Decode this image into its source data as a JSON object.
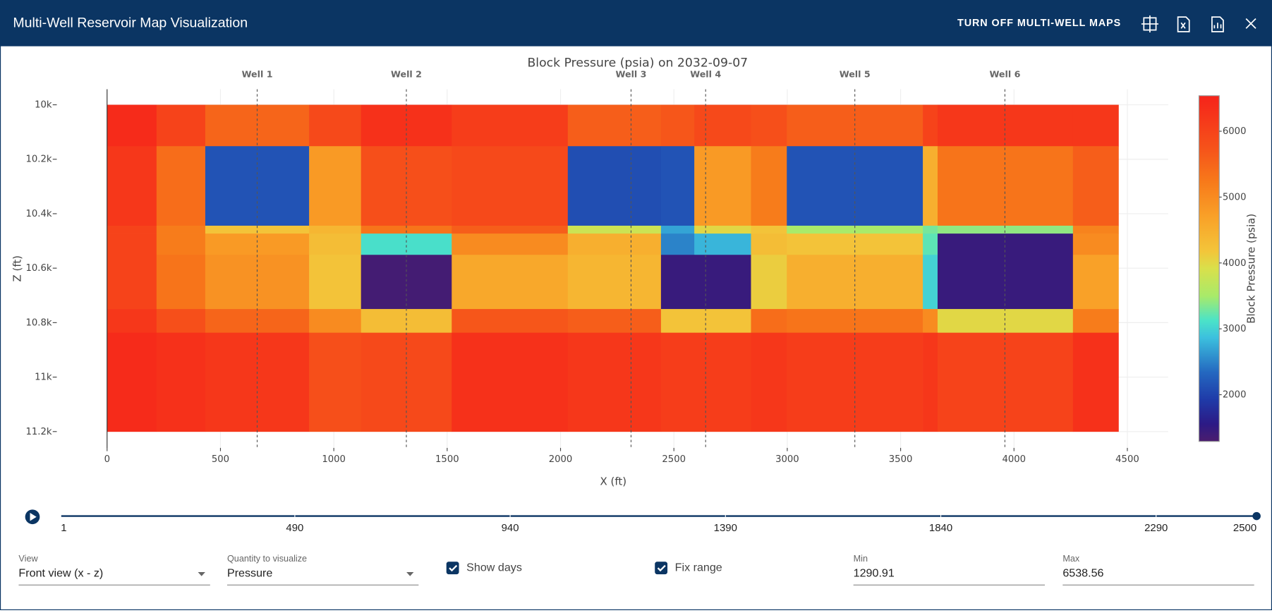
{
  "header": {
    "title": "Multi-Well Reservoir Map Visualization",
    "button": "TURN OFF MULTI-WELL MAPS"
  },
  "chart_data": {
    "type": "heatmap",
    "title": "Block Pressure (psia) on 2032-09-07",
    "x_label": "X (ft)",
    "y_label": "Z (ft)",
    "x_edges": [
      0,
      218,
      433,
      891,
      1120,
      1520,
      2032,
      2443,
      2590,
      2840,
      2998,
      3598,
      3663,
      4260,
      4461
    ],
    "y_edges": [
      10000,
      10152,
      10444,
      10473,
      10551,
      10750,
      10837,
      11200
    ],
    "z": [
      [
        6400,
        6000,
        5500,
        5900,
        6300,
        6100,
        5600,
        5700,
        5900,
        5800,
        5600,
        6000,
        6200,
        6200
      ],
      [
        6200,
        5400,
        2150,
        4800,
        5800,
        5900,
        2100,
        2150,
        4800,
        5200,
        2150,
        4500,
        5300,
        5600
      ],
      [
        6000,
        5200,
        4200,
        4400,
        5300,
        5600,
        3800,
        2700,
        4000,
        4200,
        3500,
        3300,
        3400,
        5100
      ],
      [
        6000,
        5200,
        4800,
        4300,
        3100,
        5000,
        4500,
        2500,
        2800,
        4300,
        4200,
        3200,
        1450,
        5000
      ],
      [
        6000,
        5300,
        4900,
        4200,
        1350,
        4600,
        4400,
        1450,
        1450,
        4100,
        4500,
        3000,
        1450,
        4700
      ],
      [
        6200,
        5800,
        5500,
        5000,
        4300,
        5700,
        5600,
        4200,
        4200,
        5400,
        5300,
        5000,
        4000,
        5200
      ],
      [
        6400,
        6300,
        6200,
        5800,
        5900,
        6300,
        6200,
        6100,
        6100,
        6200,
        6100,
        6200,
        6000,
        6300
      ]
    ],
    "xlim": [
      0,
      4680
    ],
    "ylim": [
      11260,
      9943
    ],
    "xticks": [
      0,
      500,
      1000,
      1500,
      2000,
      2500,
      3000,
      3500,
      4000,
      4500
    ],
    "yticks": [
      {
        "value": 10000,
        "label": "10k"
      },
      {
        "value": 10200,
        "label": "10.2k"
      },
      {
        "value": 10400,
        "label": "10.4k"
      },
      {
        "value": 10600,
        "label": "10.6k"
      },
      {
        "value": 10800,
        "label": "10.8k"
      },
      {
        "value": 11000,
        "label": "11k"
      },
      {
        "value": 11200,
        "label": "11.2k"
      }
    ],
    "grid": true,
    "wells": [
      {
        "name": "Well 1",
        "x": 662
      },
      {
        "name": "Well 2",
        "x": 1320
      },
      {
        "name": "Well 3",
        "x": 2311
      },
      {
        "name": "Well 4",
        "x": 2640
      },
      {
        "name": "Well 5",
        "x": 3298
      },
      {
        "name": "Well 6",
        "x": 3960
      }
    ],
    "zlim": [
      1290.91,
      6538.56
    ],
    "colorbar": {
      "title": "Block Pressure (psia)",
      "ticks": [
        2000,
        3000,
        4000,
        5000,
        6000
      ]
    },
    "colorscale": [
      [
        0,
        "#4b1d6e"
      ],
      [
        0.05,
        "#2c1a85"
      ],
      [
        0.12,
        "#1f3aa8"
      ],
      [
        0.2,
        "#2468c0"
      ],
      [
        0.3,
        "#3cc0de"
      ],
      [
        0.35,
        "#4be3c8"
      ],
      [
        0.42,
        "#a8ea6a"
      ],
      [
        0.5,
        "#d9e04b"
      ],
      [
        0.55,
        "#f3c53a"
      ],
      [
        0.65,
        "#f9a128"
      ],
      [
        0.75,
        "#f77a1a"
      ],
      [
        0.85,
        "#f6521a"
      ],
      [
        1,
        "#f6231a"
      ]
    ]
  },
  "slider": {
    "min": 1,
    "max": 2500,
    "value": 2500,
    "ticks": [
      1,
      490,
      940,
      1390,
      1840,
      2290,
      2500
    ]
  },
  "controls": {
    "view": {
      "label": "View",
      "value": "Front view (x - z)"
    },
    "quantity": {
      "label": "Quantity to visualize",
      "value": "Pressure"
    },
    "show_days": {
      "label": "Show days",
      "checked": true
    },
    "fix_range": {
      "label": "Fix range",
      "checked": true
    },
    "min": {
      "label": "Min"
    },
    "max": {
      "label": "Max"
    }
  }
}
